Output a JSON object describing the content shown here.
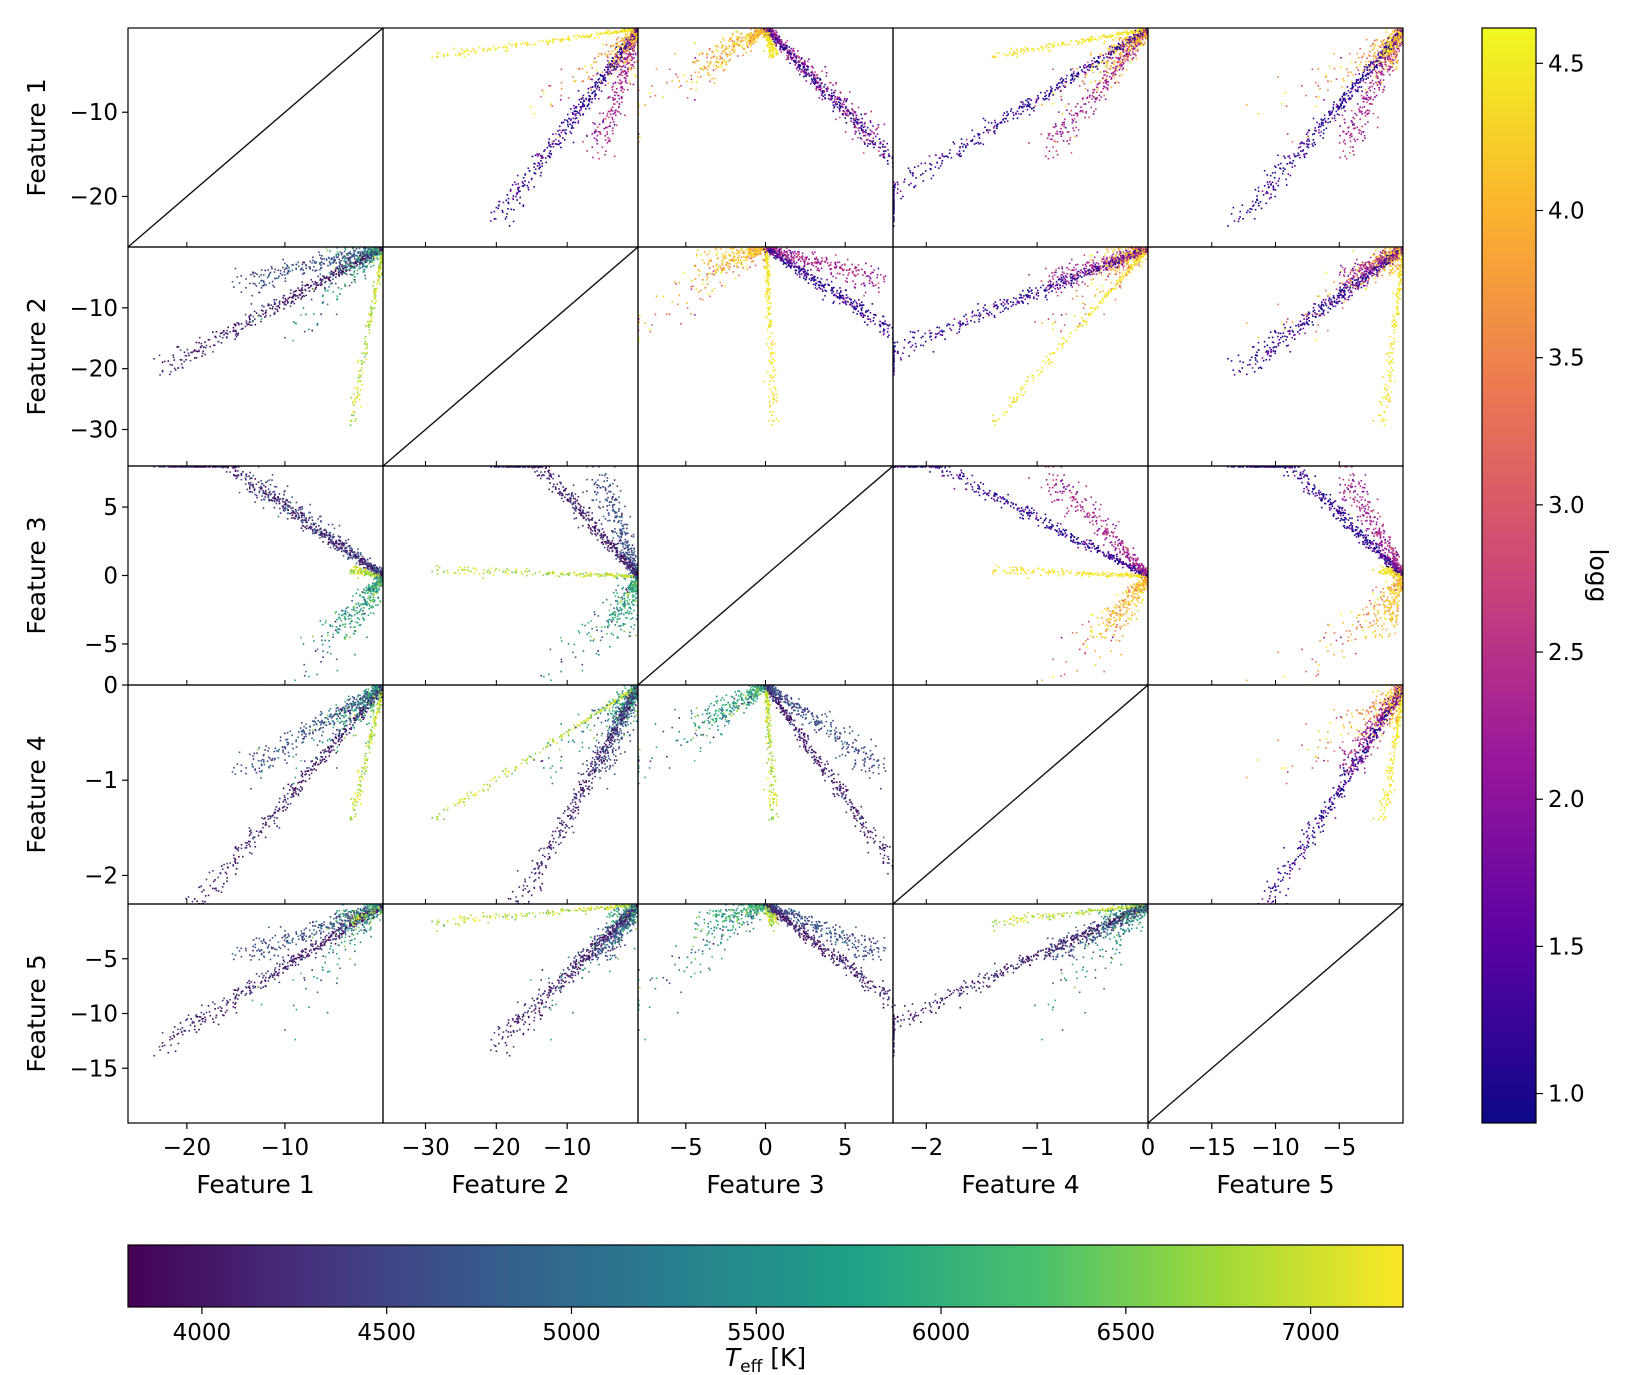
{
  "chart_data": {
    "type": "scatter",
    "title": "",
    "features": [
      {
        "name": "Feature 1",
        "range": [
          -26,
          0
        ],
        "ticks": [
          -20,
          -10
        ]
      },
      {
        "name": "Feature 2",
        "range": [
          -36,
          0
        ],
        "ticks": [
          -30,
          -20,
          -10
        ]
      },
      {
        "name": "Feature 3",
        "range": [
          -8,
          8
        ],
        "ticks": [
          -5,
          0,
          5
        ]
      },
      {
        "name": "Feature 4",
        "range": [
          -2.3,
          0
        ],
        "ticks": [
          -2,
          -1,
          0
        ]
      },
      {
        "name": "Feature 5",
        "range": [
          -20,
          0
        ],
        "ticks": [
          -15,
          -10,
          -5
        ]
      }
    ],
    "upper_triangle_color": "logg",
    "lower_triangle_color": "Teff",
    "diagonal": "identity line",
    "colorbar_logg": {
      "label": "logg",
      "range": [
        0.9,
        4.62
      ],
      "ticks": [
        1.0,
        1.5,
        2.0,
        2.5,
        3.0,
        3.5,
        4.0,
        4.5
      ],
      "colormap": "plasma"
    },
    "colorbar_teff": {
      "label_main": "T",
      "label_sub": "eff",
      "label_unit": " [K]",
      "range": [
        3800,
        7250
      ],
      "ticks": [
        4000,
        4500,
        5000,
        5500,
        6000,
        6500,
        7000
      ],
      "colormap": "viridis"
    }
  },
  "colors": {
    "plasma": [
      "#0d0887",
      "#5b02a3",
      "#9a179b",
      "#cb4678",
      "#eb7852",
      "#fbb32f",
      "#f0f921"
    ],
    "viridis": [
      "#440154",
      "#46327e",
      "#365c8d",
      "#277f8e",
      "#1fa187",
      "#4ac16d",
      "#a0da39",
      "#fde725"
    ]
  }
}
